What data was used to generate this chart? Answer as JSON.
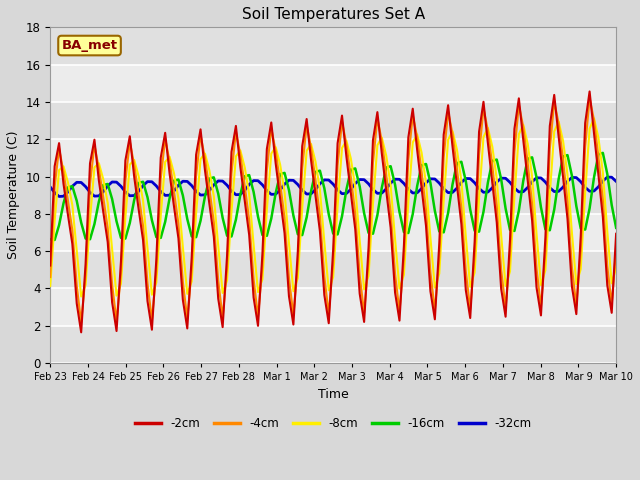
{
  "title": "Soil Temperatures Set A",
  "xlabel": "Time",
  "ylabel": "Soil Temperature (C)",
  "legend_label": "BA_met",
  "ylim": [
    0,
    18
  ],
  "series_colors": {
    "-2cm": "#cc0000",
    "-4cm": "#ff8800",
    "-8cm": "#ffee00",
    "-16cm": "#00cc00",
    "-32cm": "#0000cc"
  },
  "xtick_labels": [
    "Feb 23",
    "Feb 24",
    "Feb 25",
    "Feb 26",
    "Feb 27",
    "Feb 28",
    "Mar 1",
    "Mar 2",
    "Mar 3",
    "Mar 4",
    "Mar 5",
    "Mar 6",
    "Mar 7",
    "Mar 8",
    "Mar 9",
    "Mar 10"
  ],
  "background_color": "#d8d8d8",
  "plot_bg_color": "#e8e8e8",
  "grid_color": "#ffffff",
  "n_per_day": 8,
  "n_days": 16
}
